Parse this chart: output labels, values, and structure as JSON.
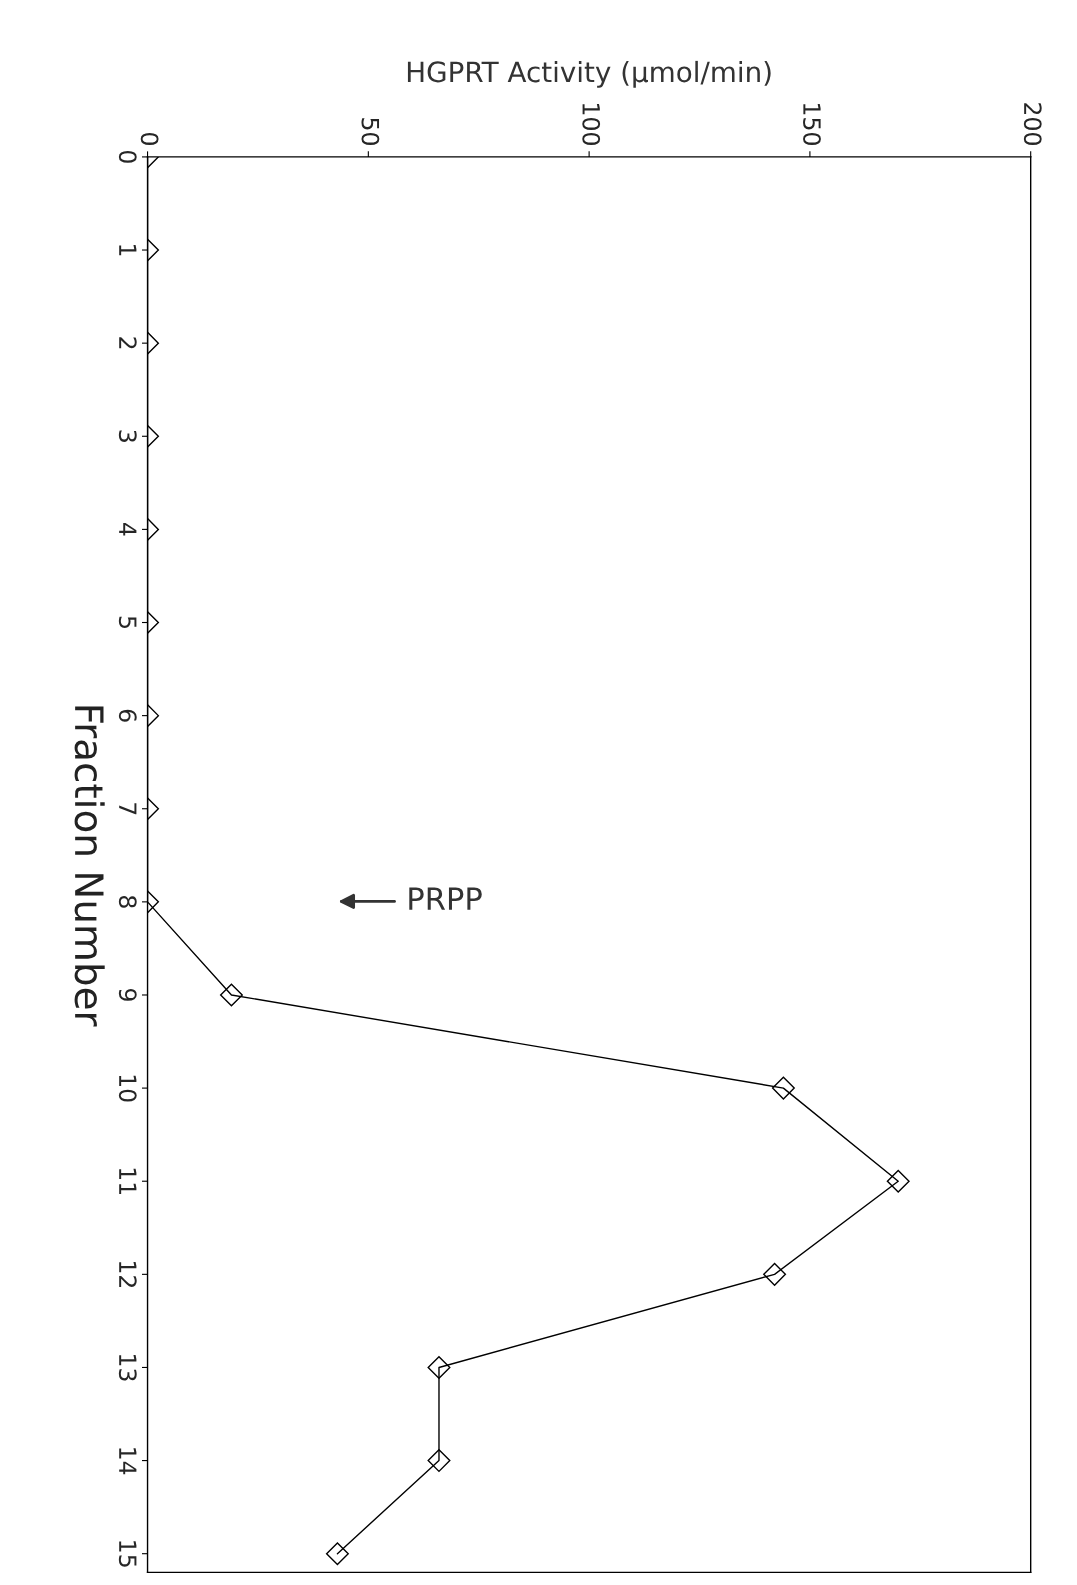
{
  "chart_data": {
    "type": "line",
    "xlabel": "HGPRT Activity (μmol/min)",
    "ylabel": "Fraction Number",
    "series": [
      {
        "color": "#000000",
        "x": [
          0,
          0,
          0,
          0,
          0,
          0,
          0,
          0,
          0,
          19,
          144,
          170,
          142,
          66,
          66,
          43
        ],
        "values": [
          0,
          1,
          2,
          3,
          4,
          5,
          6,
          7,
          8,
          9,
          10,
          11,
          12,
          13,
          14,
          15
        ]
      }
    ],
    "xlim": [
      0,
      200
    ],
    "xticks": [
      0,
      50,
      100,
      150,
      200
    ],
    "ylim": [
      15.2,
      0
    ],
    "yticks": [
      0,
      1,
      2,
      3,
      4,
      5,
      6,
      7,
      8,
      9,
      10,
      11,
      12,
      13,
      14,
      15
    ],
    "marker": "diamond",
    "line_style": "solid",
    "grid": false,
    "legend": false,
    "annotations": [
      "PRPP"
    ]
  }
}
